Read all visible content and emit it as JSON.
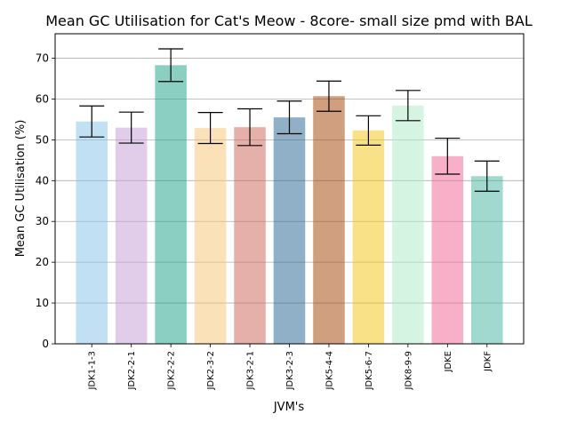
{
  "chart_data": {
    "type": "bar",
    "title": "Mean GC Utilisation for Cat's Meow - 8core- small size pmd with BAL",
    "xlabel": "JVM's",
    "ylabel": "Mean GC Utilisation (%)",
    "ylim": [
      0,
      76
    ],
    "yticks": [
      0,
      10,
      20,
      30,
      40,
      50,
      60,
      70
    ],
    "grid": "horizontal",
    "categories": [
      "JDK1-1-3",
      "JDK2-2-1",
      "JDK2-2-2",
      "JDK2-3-2",
      "JDK3-2-1",
      "JDK3-2-3",
      "JDK5-4-4",
      "JDK5-6-7",
      "JDK8-9-9",
      "JDKE",
      "JDKF"
    ],
    "values": [
      54.5,
      53.0,
      68.3,
      52.9,
      53.1,
      55.5,
      60.7,
      52.3,
      58.4,
      46.0,
      41.1
    ],
    "errors": [
      3.8,
      3.8,
      4.0,
      3.8,
      4.5,
      4.0,
      3.7,
      3.6,
      3.7,
      4.4,
      3.7
    ],
    "colors": [
      "#85c1e9",
      "#c39bd3",
      "#16a085",
      "#f8c471",
      "#cd6155",
      "#1f618d",
      "#a04000",
      "#f1c40f",
      "#abebc6",
      "#f06292",
      "#45b39d"
    ],
    "bar_opacity": 0.5
  }
}
